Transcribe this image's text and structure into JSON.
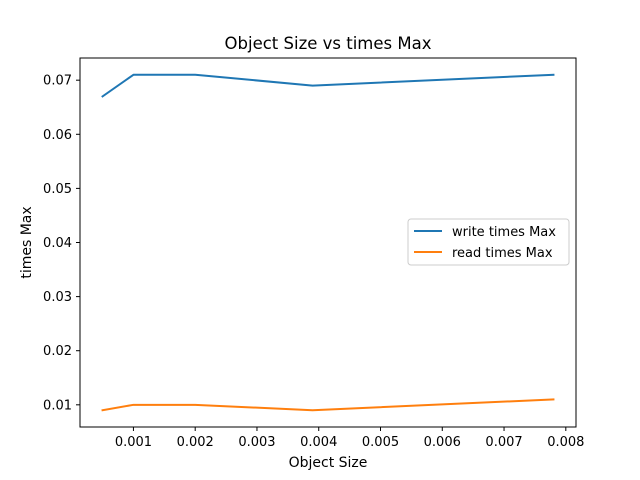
{
  "chart_data": {
    "type": "line",
    "title": "Object Size vs times Max",
    "xlabel": "Object Size",
    "ylabel": "times Max",
    "x": [
      0.0005,
      0.001,
      0.002,
      0.0039,
      0.0078
    ],
    "series": [
      {
        "name": "write times Max",
        "values": [
          0.067,
          0.071,
          0.071,
          0.069,
          0.071
        ],
        "color": "#1f77b4"
      },
      {
        "name": "read times Max",
        "values": [
          0.009,
          0.01,
          0.01,
          0.009,
          0.011
        ],
        "color": "#ff7f0e"
      }
    ],
    "xlim": [
      0.000135,
      0.008165
    ],
    "ylim": [
      0.0059,
      0.0741
    ],
    "xticks": [
      0.001,
      0.002,
      0.003,
      0.004,
      0.005,
      0.006,
      0.007,
      0.008
    ],
    "xtick_labels": [
      "0.001",
      "0.002",
      "0.003",
      "0.004",
      "0.005",
      "0.006",
      "0.007",
      "0.008"
    ],
    "yticks": [
      0.01,
      0.02,
      0.03,
      0.04,
      0.05,
      0.06,
      0.07
    ],
    "ytick_labels": [
      "0.01",
      "0.02",
      "0.03",
      "0.04",
      "0.05",
      "0.06",
      "0.07"
    ],
    "grid": false,
    "legend_position": "center-right"
  }
}
